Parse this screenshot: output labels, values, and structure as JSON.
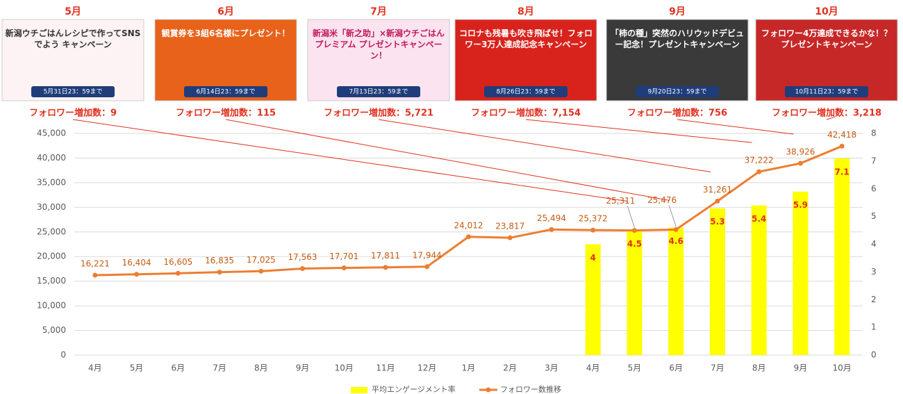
{
  "banners": [
    {
      "month": "5月",
      "headline": "新潟ウチごはんレシピで作ってSNSでよう キャンペーン",
      "note": "5月31日23：59まで"
    },
    {
      "month": "6月",
      "headline": "観賞券を3組6名様にプレゼント！",
      "note": "6月14日23：59まで"
    },
    {
      "month": "7月",
      "headline": "新潟米「新之助」×新潟ウチごはん プレミアム プレゼントキャンペーン！",
      "note": "7月13日23：59まで"
    },
    {
      "month": "8月",
      "headline": "コロナも残暑も吹き飛ばせ！フォロワー3万人達成記念キャンペーン",
      "note": "8月26日23：59まで"
    },
    {
      "month": "9月",
      "headline": "「柿の種」突然のハリウッドデビュー記念！プレゼントキャンペーン",
      "note": "9月20日23：59まで"
    },
    {
      "month": "10月",
      "headline": "フォロワー4万達成できるかな！？プレゼントキャンペーン",
      "note": "10月11日23：59まで"
    }
  ],
  "chart_data": {
    "type": "combo",
    "annotations": [
      "フォロワー増加数：9",
      "フォロワー増加数：115",
      "フォロワー増加数：5,721",
      "フォロワー増加数：7,154",
      "フォロワー増加数：756",
      "フォロワー増加数：3,218"
    ],
    "categories": [
      "4月",
      "5月",
      "6月",
      "7月",
      "8月",
      "9月",
      "10月",
      "11月",
      "12月",
      "1月",
      "2月",
      "3月",
      "4月",
      "5月",
      "6月",
      "7月",
      "8月",
      "9月",
      "10月"
    ],
    "series": [
      {
        "name": "平均エンゲージメント率",
        "type": "bar",
        "axis": "y2",
        "color": "#ffff00",
        "label_color": "#e0301e",
        "values": [
          null,
          null,
          null,
          null,
          null,
          null,
          null,
          null,
          null,
          null,
          null,
          null,
          4,
          4.5,
          4.6,
          5.3,
          5.4,
          5.9,
          7.1
        ]
      },
      {
        "name": "フォロワー数推移",
        "type": "line",
        "color": "#ed7d31",
        "label_color": "#c55a11",
        "values": [
          16221,
          16404,
          16605,
          16835,
          17025,
          17563,
          17701,
          17811,
          17944,
          24012,
          23817,
          25494,
          25372,
          25311,
          25476,
          31261,
          37222,
          38926,
          42418
        ],
        "value_labels": [
          "16,221",
          "16,404",
          "16,605",
          "16,835",
          "17,025",
          "17,563",
          "17,701",
          "17,811",
          "17,944",
          "24,012",
          "23,817",
          "25,494",
          "25,372",
          "25,311",
          "25,476",
          "31,261",
          "37,222",
          "38,926",
          "42,418"
        ]
      }
    ],
    "ylim": [
      0,
      45000
    ],
    "yticks": [
      0,
      {
        "value": 5000,
        "label": "5,000"
      },
      {
        "value": 10000,
        "label": "10,000"
      },
      {
        "value": 15000,
        "label": "15,000"
      },
      {
        "value": 20000,
        "label": "20,000"
      },
      {
        "value": 25000,
        "label": "25,000"
      },
      {
        "value": 30000,
        "label": "30,000"
      },
      {
        "value": 35000,
        "label": "35,000"
      },
      {
        "value": 40000,
        "label": "40,000"
      },
      {
        "value": 45000,
        "label": "45,000"
      }
    ],
    "y2lim": [
      0,
      8
    ],
    "y2ticks": [
      0,
      1,
      2,
      3,
      4,
      5,
      6,
      7,
      8
    ],
    "grid": true
  }
}
